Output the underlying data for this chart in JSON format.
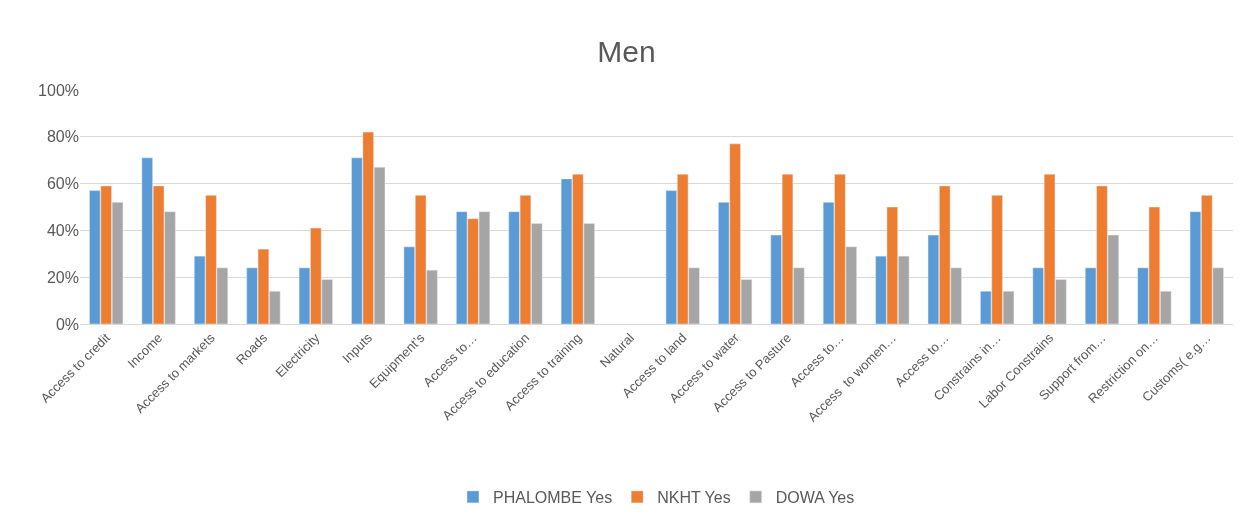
{
  "chart_data": {
    "type": "bar",
    "title": "Men",
    "categories": [
      "Access to credit",
      "Income",
      "Access to markets",
      "Roads",
      "Electricity",
      "Inputs",
      "Equipment’s",
      "Access to…",
      "Access to education",
      "Access to training",
      "Natural",
      "Access to land",
      "Access to water",
      "Access to Pasture",
      "Access to…",
      "Access  to women…",
      "Access to…",
      "Constrains in…",
      "Labor Constrains",
      "Support from…",
      "Restriction on…",
      "Customs( e.g…"
    ],
    "series": [
      {
        "name": "PHALOMBE Yes",
        "color": "#5b9bd5",
        "values": [
          57,
          71,
          29,
          24,
          24,
          71,
          33,
          48,
          48,
          62,
          null,
          57,
          52,
          38,
          52,
          29,
          38,
          14,
          24,
          24,
          24,
          48
        ]
      },
      {
        "name": "NKHT Yes",
        "color": "#ed7d31",
        "values": [
          59,
          59,
          55,
          32,
          41,
          82,
          55,
          45,
          55,
          64,
          null,
          64,
          77,
          64,
          64,
          50,
          59,
          55,
          64,
          59,
          50,
          55
        ]
      },
      {
        "name": "DOWA Yes",
        "color": "#a5a5a5",
        "values": [
          52,
          48,
          24,
          14,
          19,
          67,
          23,
          48,
          43,
          43,
          null,
          24,
          19,
          24,
          33,
          29,
          24,
          14,
          19,
          38,
          14,
          24
        ]
      }
    ],
    "ylim": [
      0,
      100
    ],
    "yticks": [
      {
        "value": 0,
        "label": "0%"
      },
      {
        "value": 20,
        "label": "20%"
      },
      {
        "value": 40,
        "label": "40%"
      },
      {
        "value": 60,
        "label": "60%"
      },
      {
        "value": 80,
        "label": "80%"
      },
      {
        "value": 100,
        "label": "100%"
      }
    ],
    "grid": "y",
    "legend": "bottom"
  }
}
